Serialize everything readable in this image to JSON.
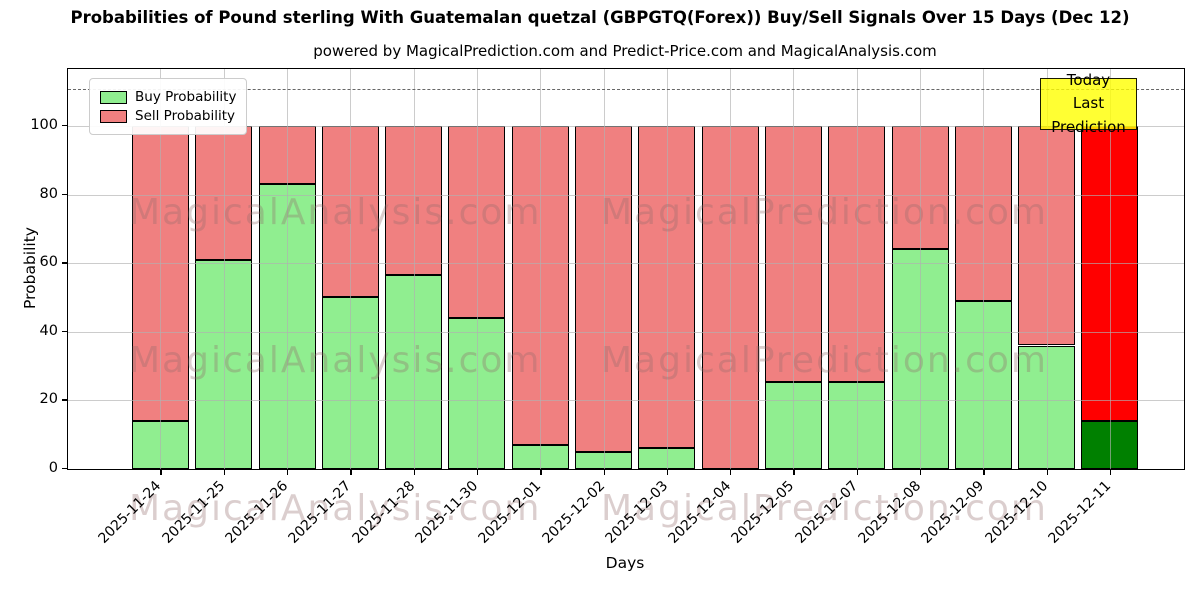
{
  "title": "Probabilities of Pound sterling With Guatemalan quetzal (GBPGTQ(Forex)) Buy/Sell Signals Over 15 Days (Dec 12)",
  "subtitle": "powered by MagicalPrediction.com and Predict-Price.com and MagicalAnalysis.com",
  "legend": {
    "items": [
      {
        "label": "Buy Probability",
        "color": "#90ee90"
      },
      {
        "label": "Sell Probability",
        "color": "#f08080"
      }
    ]
  },
  "annotation": {
    "line1": "Today",
    "line2": "Last Prediction",
    "bg": "#ffff00"
  },
  "axes": {
    "xlabel": "Days",
    "ylabel": "Probability",
    "yticks": [
      0,
      20,
      40,
      60,
      80,
      100
    ]
  },
  "watermarks": {
    "left": "MagicalAnalysis.com",
    "right": "MagicalPrediction.com",
    "rows": 3
  },
  "colors": {
    "buy": "#90ee90",
    "sell": "#f08080",
    "today_buy": "#008000",
    "today_sell": "#ff0000",
    "edge": "#000000",
    "grid": "#b0b0b0",
    "dashed_line": "#5f5f5f",
    "annotation_bg": "#ffff00"
  },
  "chart_data": {
    "type": "bar",
    "stacked": true,
    "title": "Probabilities of Pound sterling With Guatemalan quetzal (GBPGTQ(Forex)) Buy/Sell Signals Over 15 Days (Dec 12)",
    "xlabel": "Days",
    "ylabel": "Probability",
    "categories": [
      "2025-11-24",
      "2025-11-25",
      "2025-11-26",
      "2025-11-27",
      "2025-11-28",
      "2025-11-30",
      "2025-12-01",
      "2025-12-02",
      "2025-12-03",
      "2025-12-04",
      "2025-12-05",
      "2025-12-07",
      "2025-12-08",
      "2025-12-09",
      "2025-12-10",
      "2025-12-11"
    ],
    "series": [
      {
        "name": "Buy Probability",
        "color": "#90ee90",
        "values": [
          14,
          61,
          83,
          50,
          56.5,
          44,
          7,
          5,
          6,
          0,
          25.5,
          25.5,
          64,
          49,
          36,
          14
        ]
      },
      {
        "name": "Sell Probability",
        "color": "#f08080",
        "values": [
          86,
          39,
          17,
          50,
          43.5,
          56,
          93,
          95,
          94,
          100,
          74.5,
          74.5,
          36,
          51,
          64,
          86
        ]
      }
    ],
    "bar_totals": 100,
    "today_index": 15,
    "today_colors": {
      "buy": "#008000",
      "sell": "#ff0000"
    },
    "ylim": [
      0,
      116.6
    ],
    "dashed_line_y": 110,
    "grid": true,
    "legend_position": "upper left"
  }
}
